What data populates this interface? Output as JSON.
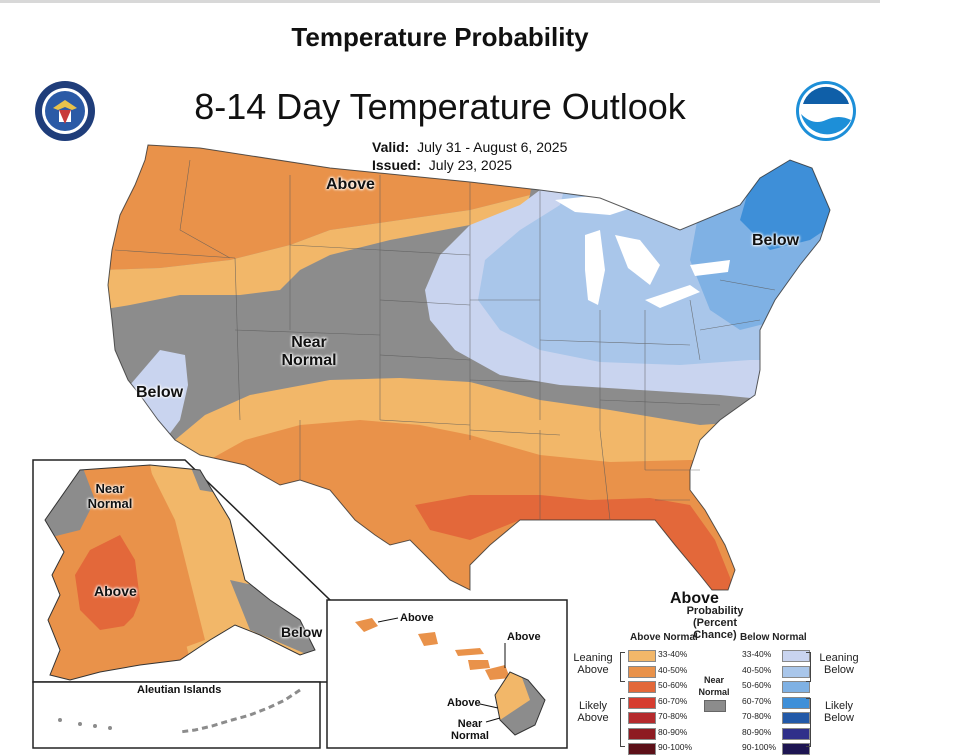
{
  "header": {
    "title": "Temperature Probability",
    "map_title": "8-14 Day Temperature Outlook"
  },
  "meta": {
    "valid_label": "Valid:",
    "valid_value": "July 31 - August 6, 2025",
    "issued_label": "Issued:",
    "issued_value": "July 23, 2025"
  },
  "labels": {
    "above_north": "Above",
    "below_east": "Below",
    "near_normal": "Near Normal",
    "below_west": "Below",
    "above_south": "Above",
    "ak_near_normal": "Near Normal",
    "ak_above": "Above",
    "ak_below": "Below",
    "aleutian": "Aleutian Islands",
    "hi_above_1": "Above",
    "hi_above_2": "Above",
    "hi_above_3": "Above",
    "hi_near_normal": "Near Normal"
  },
  "legend": {
    "title": "Probability (Percent Chance)",
    "above_header": "Above Normal",
    "below_header": "Below Normal",
    "leaning_above": "Leaning Above",
    "likely_above": "Likely Above",
    "leaning_below": "Leaning Below",
    "likely_below": "Likely Below",
    "near_normal": "Near Normal",
    "above": [
      {
        "range": "33-40%",
        "color": "#f2b769"
      },
      {
        "range": "40-50%",
        "color": "#e9924a"
      },
      {
        "range": "50-60%",
        "color": "#e3683a"
      },
      {
        "range": "60-70%",
        "color": "#d63c2f"
      },
      {
        "range": "70-80%",
        "color": "#b52a2d"
      },
      {
        "range": "80-90%",
        "color": "#8e1b22"
      },
      {
        "range": "90-100%",
        "color": "#5c1018"
      }
    ],
    "below": [
      {
        "range": "33-40%",
        "color": "#c9d4ef"
      },
      {
        "range": "40-50%",
        "color": "#a9c6ea"
      },
      {
        "range": "50-60%",
        "color": "#7fb1e4"
      },
      {
        "range": "60-70%",
        "color": "#3e8fd8"
      },
      {
        "range": "70-80%",
        "color": "#2259a8"
      },
      {
        "range": "80-90%",
        "color": "#2f2f8a"
      },
      {
        "range": "90-100%",
        "color": "#1d1552"
      }
    ],
    "near_color": "#8c8c8c"
  }
}
